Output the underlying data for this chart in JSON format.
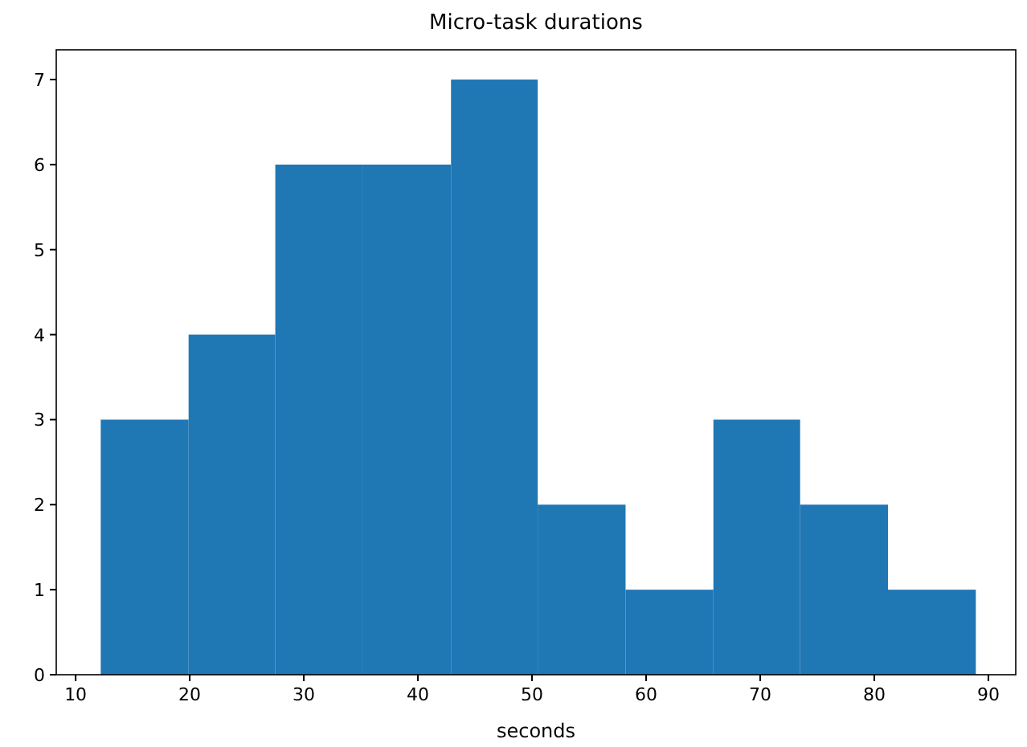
{
  "chart_data": {
    "type": "histogram",
    "title": "Micro-task durations",
    "xlabel": "seconds",
    "bins": [
      12.2,
      19.9,
      27.5,
      35.2,
      42.9,
      50.5,
      58.2,
      65.9,
      73.5,
      81.2,
      88.9
    ],
    "values": [
      3,
      4,
      6,
      6,
      7,
      2,
      1,
      3,
      2,
      1
    ],
    "color": "#1f77b4",
    "xlim": [
      8.3,
      92.4
    ],
    "xticks": [
      10,
      20,
      30,
      40,
      50,
      60,
      70,
      80,
      90
    ],
    "ylim": [
      0,
      7.35
    ],
    "yticks": [
      0,
      1,
      2,
      3,
      4,
      5,
      6,
      7
    ],
    "grid": false
  }
}
